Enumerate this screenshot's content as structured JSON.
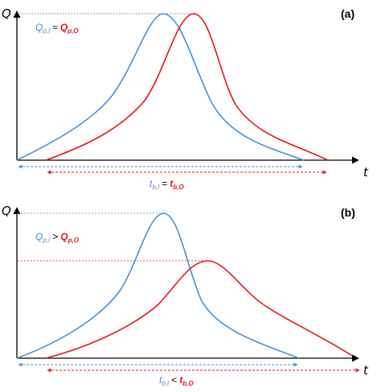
{
  "colors": {
    "inflow": "#4a90d0",
    "outflow": "#e8141c",
    "axis": "#000000",
    "ref_line": "#555555"
  },
  "panels": [
    {
      "id": "a",
      "tag": "(a)",
      "y_axis_label": "Q",
      "x_axis_label": "t",
      "peak_relation": {
        "left_sym": "Q",
        "left_sub": "p,I",
        "operator": "≈",
        "right_sym": "Q",
        "right_sub": "p,O"
      },
      "base_relation": {
        "left_sym": "t",
        "left_sub": "b,I",
        "operator": "=",
        "right_sym": "t",
        "right_sub": "b,O"
      }
    },
    {
      "id": "b",
      "tag": "(b)",
      "y_axis_label": "Q",
      "x_axis_label": "t",
      "peak_relation": {
        "left_sym": "Q",
        "left_sub": "p,I",
        "operator": ">",
        "right_sym": "Q",
        "right_sub": "p,O"
      },
      "base_relation": {
        "left_sym": "t",
        "left_sub": "b,I",
        "operator": "<",
        "right_sym": "t",
        "right_sub": "b,O"
      }
    }
  ]
}
